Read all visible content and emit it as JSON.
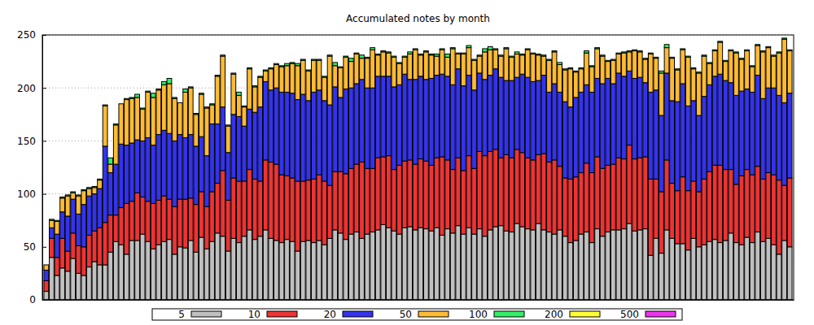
{
  "chart_data": {
    "type": "bar",
    "title": "Accumulated notes by month",
    "stacked": true,
    "grid": true,
    "legend": "bottom",
    "tick_labels": "y",
    "ylim": [
      0,
      250
    ],
    "yticks": [
      0,
      50,
      100,
      150,
      200,
      250
    ],
    "categories": [
      null,
      null,
      null,
      null,
      null,
      null,
      null,
      null,
      null,
      null,
      null,
      null,
      null,
      null,
      null,
      null,
      null,
      null,
      null,
      null,
      null,
      null,
      null,
      null,
      null,
      null,
      null,
      null,
      null,
      null,
      null,
      null,
      null,
      null,
      null,
      null,
      null,
      null,
      null,
      null,
      null,
      null,
      null,
      null,
      null,
      null,
      null,
      null,
      null,
      null,
      null,
      null,
      null,
      null,
      null,
      null,
      null,
      null,
      null,
      null,
      null,
      null,
      null,
      null,
      null,
      null,
      null,
      null,
      null,
      null,
      null,
      null,
      null,
      null,
      null,
      null,
      null,
      null,
      null,
      null,
      null,
      null,
      null,
      null,
      null,
      null,
      null,
      null,
      null,
      null,
      null,
      null,
      null,
      null,
      null,
      null,
      null,
      null,
      null,
      null,
      null,
      null,
      null,
      null,
      null,
      null,
      null,
      null,
      null,
      null,
      null,
      null,
      null,
      null,
      null,
      null,
      null,
      null,
      null,
      null,
      null,
      null,
      null,
      null,
      null,
      null,
      null,
      null,
      null,
      null,
      null,
      null,
      null,
      null,
      null,
      null,
      null,
      null,
      null,
      null
    ],
    "series": [
      {
        "name": "5",
        "color": "#c0c0c0",
        "values": [
          8,
          40,
          23,
          30,
          27,
          39,
          25,
          23,
          31,
          36,
          33,
          33,
          45,
          55,
          52,
          43,
          56,
          56,
          62,
          55,
          48,
          52,
          55,
          57,
          43,
          50,
          49,
          56,
          45,
          59,
          48,
          55,
          63,
          60,
          46,
          58,
          54,
          60,
          66,
          57,
          60,
          66,
          58,
          56,
          54,
          57,
          55,
          46,
          55,
          56,
          54,
          56,
          52,
          58,
          66,
          63,
          57,
          62,
          64,
          58,
          62,
          64,
          66,
          71,
          68,
          65,
          62,
          68,
          69,
          66,
          68,
          67,
          65,
          68,
          61,
          67,
          63,
          70,
          62,
          68,
          62,
          67,
          60,
          66,
          69,
          70,
          65,
          64,
          72,
          69,
          67,
          66,
          72,
          66,
          64,
          62,
          66,
          60,
          54,
          56,
          62,
          64,
          54,
          67,
          60,
          64,
          66,
          66,
          67,
          72,
          65,
          66,
          67,
          42,
          58,
          44,
          66,
          58,
          53,
          53,
          47,
          58,
          50,
          52,
          55,
          57,
          54,
          56,
          63,
          54,
          52,
          59,
          54,
          64,
          55,
          58,
          52,
          43,
          56,
          50
        ]
      },
      {
        "name": "10",
        "color": "#ee3333",
        "values": [
          10,
          18,
          17,
          28,
          19,
          24,
          26,
          27,
          30,
          29,
          35,
          40,
          35,
          25,
          35,
          48,
          37,
          45,
          35,
          38,
          43,
          42,
          43,
          38,
          45,
          45,
          46,
          40,
          45,
          43,
          40,
          47,
          47,
          62,
          48,
          57,
          58,
          52,
          57,
          57,
          52,
          66,
          72,
          72,
          64,
          60,
          60,
          66,
          57,
          57,
          60,
          62,
          60,
          50,
          55,
          58,
          62,
          62,
          64,
          72,
          62,
          60,
          68,
          64,
          68,
          58,
          65,
          63,
          63,
          62,
          65,
          64,
          62,
          66,
          74,
          65,
          60,
          64,
          60,
          68,
          62,
          73,
          76,
          74,
          73,
          64,
          72,
          70,
          70,
          70,
          67,
          66,
          65,
          72,
          66,
          70,
          60,
          55,
          60,
          60,
          58,
          65,
          66,
          68,
          64,
          63,
          62,
          68,
          66,
          74,
          68,
          68,
          68,
          72,
          56,
          58,
          66,
          52,
          50,
          63,
          56,
          54,
          52,
          62,
          66,
          70,
          73,
          67,
          60,
          55,
          65,
          64,
          64,
          62,
          59,
          62,
          66,
          70,
          52,
          65
        ]
      },
      {
        "name": "20",
        "color": "#3333ee",
        "values": [
          10,
          10,
          22,
          25,
          33,
          32,
          30,
          40,
          37,
          35,
          37,
          72,
          40,
          48,
          60,
          55,
          55,
          50,
          53,
          60,
          55,
          62,
          62,
          62,
          62,
          61,
          58,
          60,
          55,
          52,
          48,
          64,
          56,
          60,
          45,
          60,
          61,
          52,
          57,
          63,
          70,
          74,
          68,
          72,
          78,
          79,
          80,
          77,
          82,
          75,
          82,
          80,
          76,
          76,
          80,
          70,
          80,
          76,
          76,
          78,
          76,
          76,
          77,
          76,
          75,
          78,
          76,
          82,
          76,
          80,
          78,
          77,
          82,
          78,
          78,
          79,
          80,
          84,
          80,
          76,
          74,
          74,
          72,
          72,
          76,
          76,
          70,
          73,
          68,
          74,
          76,
          74,
          70,
          74,
          66,
          72,
          70,
          72,
          68,
          75,
          76,
          74,
          76,
          74,
          80,
          82,
          76,
          80,
          78,
          70,
          76,
          76,
          70,
          82,
          84,
          72,
          82,
          78,
          84,
          88,
          80,
          76,
          72,
          78,
          82,
          84,
          86,
          84,
          82,
          84,
          80,
          76,
          78,
          86,
          76,
          80,
          82,
          80,
          78,
          80
        ]
      },
      {
        "name": "50",
        "color": "#ffbb33",
        "values": [
          5,
          7,
          12,
          13,
          19,
          6,
          17,
          13,
          7,
          6,
          8,
          38,
          8,
          37,
          38,
          43,
          42,
          40,
          30,
          43,
          45,
          42,
          43,
          47,
          40,
          30,
          43,
          44,
          30,
          40,
          45,
          18,
          45,
          48,
          25,
          38,
          20,
          18,
          38,
          24,
          28,
          10,
          20,
          22,
          24,
          25,
          28,
          32,
          32,
          28,
          30,
          28,
          22,
          46,
          20,
          28,
          30,
          25,
          28,
          20,
          28,
          36,
          20,
          23,
          22,
          28,
          20,
          16,
          24,
          28,
          20,
          26,
          22,
          18,
          23,
          18,
          34,
          14,
          30,
          26,
          28,
          16,
          26,
          24,
          18,
          20,
          30,
          22,
          22,
          18,
          26,
          26,
          24,
          18,
          30,
          30,
          26,
          30,
          36,
          24,
          22,
          30,
          24,
          28,
          26,
          16,
          22,
          18,
          22,
          18,
          26,
          24,
          22,
          36,
          30,
          40,
          24,
          40,
          30,
          32,
          46,
          30,
          40,
          38,
          20,
          24,
          30,
          18,
          30,
          40,
          30,
          36,
          24,
          28,
          44,
          38,
          30,
          40,
          60,
          40
        ]
      },
      {
        "name": "100",
        "color": "#33ee66",
        "values": [
          0,
          1,
          1,
          1,
          1,
          1,
          1,
          1,
          1,
          1,
          1,
          1,
          6,
          1,
          0,
          1,
          1,
          3,
          1,
          1,
          4,
          1,
          3,
          5,
          1,
          0,
          3,
          1,
          1,
          1,
          1,
          1,
          1,
          1,
          1,
          1,
          3,
          1,
          1,
          1,
          1,
          1,
          1,
          1,
          1,
          2,
          1,
          2,
          1,
          1,
          1,
          1,
          1,
          1,
          3,
          1,
          1,
          3,
          1,
          3,
          1,
          2,
          1,
          1,
          1,
          1,
          1,
          1,
          2,
          1,
          1,
          1,
          1,
          2,
          1,
          3,
          1,
          1,
          1,
          2,
          1,
          1,
          3,
          3,
          1,
          1,
          1,
          1,
          2,
          1,
          1,
          1,
          1,
          1,
          1,
          1,
          2,
          1,
          1,
          1,
          1,
          2,
          1,
          1,
          1,
          1,
          1,
          1,
          1,
          1,
          1,
          1,
          1,
          1,
          1,
          2,
          3,
          1,
          1,
          1,
          1,
          1,
          1,
          1,
          1,
          1,
          1,
          1,
          1,
          1,
          1,
          1,
          1,
          1,
          1,
          1,
          1,
          1,
          1,
          1
        ]
      },
      {
        "name": "200",
        "color": "#ffff33",
        "values": [
          0,
          0,
          0,
          0,
          0,
          0,
          0,
          0,
          0,
          0,
          0,
          0,
          0,
          0,
          0,
          0,
          0,
          0,
          0,
          0,
          0,
          0,
          0,
          0,
          0,
          0,
          0,
          0,
          0,
          0,
          0,
          0,
          0,
          0,
          0,
          0,
          0,
          0,
          0,
          0,
          0,
          0,
          0,
          0,
          0,
          0,
          0,
          0,
          0,
          0,
          0,
          0,
          0,
          0,
          0,
          0,
          0,
          0,
          0,
          0,
          0,
          0,
          0,
          0,
          0,
          0,
          0,
          0,
          0,
          0,
          0,
          0,
          0,
          0,
          0,
          0,
          0,
          0,
          0,
          0,
          0,
          0,
          0,
          0,
          0,
          0,
          0,
          0,
          0,
          0,
          0,
          0,
          0,
          0,
          0,
          0,
          0,
          0,
          0,
          0,
          0,
          0,
          0,
          0,
          0,
          0,
          0,
          0,
          0,
          0,
          0,
          0,
          0,
          0,
          0,
          0,
          0,
          0,
          0,
          0,
          0,
          0,
          0,
          0,
          0,
          0,
          0,
          0,
          0,
          0,
          0,
          0,
          0,
          0,
          0,
          0,
          0,
          0,
          0,
          0
        ]
      },
      {
        "name": "500",
        "color": "#ee33ee",
        "values": [
          0,
          0,
          0,
          0,
          0,
          0,
          0,
          0,
          0,
          0,
          0,
          0,
          0,
          0,
          0,
          0,
          0,
          0,
          0,
          0,
          0,
          0,
          0,
          0,
          0,
          0,
          0,
          0,
          0,
          0,
          0,
          0,
          0,
          0,
          0,
          0,
          0,
          0,
          0,
          0,
          0,
          0,
          0,
          0,
          0,
          0,
          0,
          0,
          0,
          0,
          0,
          0,
          0,
          0,
          0,
          0,
          0,
          0,
          0,
          0,
          0,
          0,
          0,
          0,
          0,
          0,
          0,
          0,
          0,
          0,
          0,
          0,
          0,
          0,
          0,
          0,
          0,
          0,
          0,
          0,
          0,
          0,
          0,
          0,
          0,
          0,
          0,
          0,
          0,
          0,
          0,
          0,
          0,
          0,
          0,
          0,
          0,
          0,
          0,
          0,
          0,
          0,
          0,
          0,
          0,
          0,
          0,
          0,
          0,
          0,
          0,
          0,
          0,
          0,
          0,
          0,
          0,
          0,
          0,
          0,
          0,
          0,
          0,
          0,
          0,
          0,
          0,
          0,
          0,
          0,
          0,
          0,
          0,
          0,
          0,
          0,
          0,
          0,
          0,
          0
        ]
      }
    ]
  }
}
